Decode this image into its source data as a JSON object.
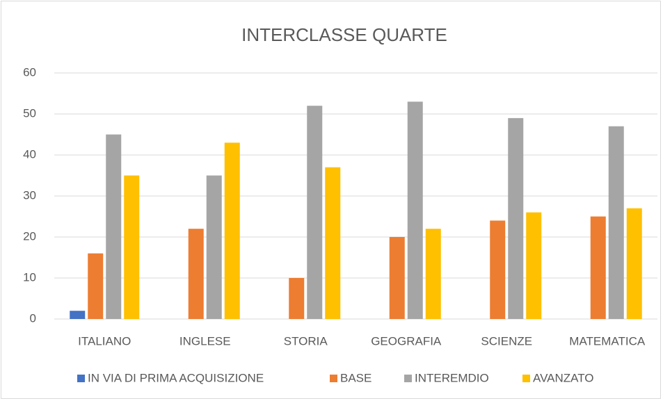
{
  "chart_data": {
    "type": "bar",
    "title": "INTERCLASSE QUARTE",
    "categories": [
      "ITALIANO",
      "INGLESE",
      "STORIA",
      "GEOGRAFIA",
      "SCIENZE",
      "MATEMATICA"
    ],
    "series": [
      {
        "name": "IN VIA DI PRIMA ACQUISIZIONE",
        "color": "#4472c4",
        "values": [
          2,
          0,
          0,
          0,
          0,
          0
        ]
      },
      {
        "name": "BASE",
        "color": "#ed7d31",
        "values": [
          16,
          22,
          10,
          20,
          24,
          25
        ]
      },
      {
        "name": "INTEREMDIO",
        "color": "#a5a5a5",
        "values": [
          45,
          35,
          52,
          53,
          49,
          47
        ]
      },
      {
        "name": "AVANZATO",
        "color": "#ffc000",
        "values": [
          35,
          43,
          37,
          22,
          26,
          27
        ]
      }
    ],
    "ylim": [
      0,
      60
    ],
    "yticks": [
      0,
      10,
      20,
      30,
      40,
      50,
      60
    ],
    "grid": true,
    "legend": "bottom"
  }
}
